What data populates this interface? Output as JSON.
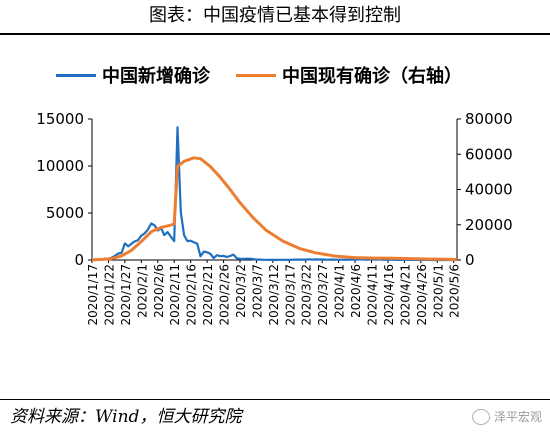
{
  "header": {
    "title": "图表：中国疫情已基本得到控制"
  },
  "footer": {
    "source": "资料来源：Wind，恒大研究院",
    "watermark": "泽平宏观"
  },
  "colors": {
    "new_cases": "#1f6fc1",
    "active_cases": "#ed7d31"
  },
  "chart_data": {
    "type": "line",
    "title": "图表：中国疫情已基本得到控制",
    "legend_position": "top",
    "grid": false,
    "series": [
      {
        "name": "中国新增确诊",
        "axis": "left",
        "color": "#1f6fc1",
        "points": [
          [
            "2020-01-17",
            17
          ],
          [
            "2020-01-18",
            4
          ],
          [
            "2020-01-19",
            77
          ],
          [
            "2020-01-20",
            77
          ],
          [
            "2020-01-21",
            149
          ],
          [
            "2020-01-22",
            131
          ],
          [
            "2020-01-23",
            259
          ],
          [
            "2020-01-24",
            444
          ],
          [
            "2020-01-25",
            688
          ],
          [
            "2020-01-26",
            769
          ],
          [
            "2020-01-27",
            1771
          ],
          [
            "2020-01-28",
            1459
          ],
          [
            "2020-01-29",
            1737
          ],
          [
            "2020-01-30",
            1982
          ],
          [
            "2020-01-31",
            2102
          ],
          [
            "2020-02-01",
            2590
          ],
          [
            "2020-02-02",
            2829
          ],
          [
            "2020-02-03",
            3235
          ],
          [
            "2020-02-04",
            3887
          ],
          [
            "2020-02-05",
            3694
          ],
          [
            "2020-02-06",
            3143
          ],
          [
            "2020-02-07",
            3385
          ],
          [
            "2020-02-08",
            2652
          ],
          [
            "2020-02-09",
            2973
          ],
          [
            "2020-02-10",
            2467
          ],
          [
            "2020-02-11",
            2015
          ],
          [
            "2020-02-12",
            14108
          ],
          [
            "2020-02-13",
            5090
          ],
          [
            "2020-02-14",
            2641
          ],
          [
            "2020-02-15",
            2008
          ],
          [
            "2020-02-16",
            2048
          ],
          [
            "2020-02-17",
            1886
          ],
          [
            "2020-02-18",
            1749
          ],
          [
            "2020-02-19",
            394
          ],
          [
            "2020-02-20",
            889
          ],
          [
            "2020-02-21",
            823
          ],
          [
            "2020-02-22",
            648
          ],
          [
            "2020-02-23",
            214
          ],
          [
            "2020-02-24",
            508
          ],
          [
            "2020-02-25",
            406
          ],
          [
            "2020-02-26",
            433
          ],
          [
            "2020-02-27",
            327
          ],
          [
            "2020-02-28",
            427
          ],
          [
            "2020-02-29",
            573
          ],
          [
            "2020-03-01",
            202
          ],
          [
            "2020-03-02",
            125
          ],
          [
            "2020-03-03",
            119
          ],
          [
            "2020-03-04",
            139
          ],
          [
            "2020-03-05",
            143
          ],
          [
            "2020-03-06",
            99
          ],
          [
            "2020-03-07",
            44
          ],
          [
            "2020-03-08",
            40
          ],
          [
            "2020-03-09",
            19
          ],
          [
            "2020-03-10",
            24
          ],
          [
            "2020-03-11",
            15
          ],
          [
            "2020-03-12",
            8
          ],
          [
            "2020-03-13",
            11
          ],
          [
            "2020-03-14",
            20
          ],
          [
            "2020-03-15",
            16
          ],
          [
            "2020-03-16",
            21
          ],
          [
            "2020-03-17",
            13
          ],
          [
            "2020-03-18",
            34
          ],
          [
            "2020-03-19",
            39
          ],
          [
            "2020-03-20",
            41
          ],
          [
            "2020-03-21",
            46
          ],
          [
            "2020-03-22",
            39
          ],
          [
            "2020-03-23",
            78
          ],
          [
            "2020-03-24",
            47
          ],
          [
            "2020-03-25",
            67
          ],
          [
            "2020-03-26",
            55
          ],
          [
            "2020-03-27",
            54
          ],
          [
            "2020-03-28",
            45
          ],
          [
            "2020-03-29",
            31
          ],
          [
            "2020-03-30",
            48
          ],
          [
            "2020-03-31",
            36
          ],
          [
            "2020-04-01",
            35
          ],
          [
            "2020-04-02",
            31
          ],
          [
            "2020-04-03",
            19
          ],
          [
            "2020-04-04",
            30
          ],
          [
            "2020-04-05",
            39
          ],
          [
            "2020-04-06",
            32
          ],
          [
            "2020-04-07",
            62
          ],
          [
            "2020-04-08",
            63
          ],
          [
            "2020-04-09",
            42
          ],
          [
            "2020-04-10",
            46
          ],
          [
            "2020-04-11",
            99
          ],
          [
            "2020-04-12",
            108
          ],
          [
            "2020-04-13",
            89
          ],
          [
            "2020-04-14",
            46
          ],
          [
            "2020-04-15",
            26
          ],
          [
            "2020-04-16",
            27
          ],
          [
            "2020-04-17",
            27
          ],
          [
            "2020-04-18",
            16
          ],
          [
            "2020-04-19",
            12
          ],
          [
            "2020-04-20",
            11
          ],
          [
            "2020-04-21",
            30
          ],
          [
            "2020-04-22",
            10
          ],
          [
            "2020-04-23",
            6
          ],
          [
            "2020-04-24",
            12
          ],
          [
            "2020-04-25",
            11
          ],
          [
            "2020-04-26",
            3
          ],
          [
            "2020-04-27",
            6
          ],
          [
            "2020-04-28",
            22
          ],
          [
            "2020-04-29",
            4
          ],
          [
            "2020-04-30",
            12
          ],
          [
            "2020-05-01",
            1
          ],
          [
            "2020-05-02",
            2
          ],
          [
            "2020-05-03",
            3
          ],
          [
            "2020-05-04",
            1
          ],
          [
            "2020-05-05",
            2
          ],
          [
            "2020-05-06",
            2
          ],
          [
            "2020-05-07",
            4
          ]
        ]
      },
      {
        "name": "中国现有确诊（右轴）",
        "axis": "right",
        "color": "#ed7d31",
        "points": [
          [
            "2020-01-17",
            100
          ],
          [
            "2020-01-20",
            300
          ],
          [
            "2020-01-23",
            800
          ],
          [
            "2020-01-26",
            2300
          ],
          [
            "2020-01-29",
            5500
          ],
          [
            "2020-02-01",
            10500
          ],
          [
            "2020-02-04",
            16000
          ],
          [
            "2020-02-07",
            18500
          ],
          [
            "2020-02-10",
            19800
          ],
          [
            "2020-02-11",
            20500
          ],
          [
            "2020-02-12",
            53000
          ],
          [
            "2020-02-14",
            56000
          ],
          [
            "2020-02-17",
            58000
          ],
          [
            "2020-02-19",
            57500
          ],
          [
            "2020-02-22",
            53000
          ],
          [
            "2020-02-25",
            47000
          ],
          [
            "2020-02-28",
            40000
          ],
          [
            "2020-03-02",
            32500
          ],
          [
            "2020-03-06",
            24000
          ],
          [
            "2020-03-10",
            16800
          ],
          [
            "2020-03-15",
            10800
          ],
          [
            "2020-03-20",
            6600
          ],
          [
            "2020-03-25",
            4100
          ],
          [
            "2020-03-31",
            2200
          ],
          [
            "2020-04-06",
            1350
          ],
          [
            "2020-04-12",
            1100
          ],
          [
            "2020-04-18",
            1000
          ],
          [
            "2020-04-24",
            700
          ],
          [
            "2020-04-30",
            500
          ],
          [
            "2020-05-07",
            300
          ]
        ]
      }
    ],
    "y_left": {
      "min": 0,
      "max": 15000,
      "ticks": [
        "0",
        "5000",
        "10000",
        "15000"
      ]
    },
    "y_right": {
      "min": 0,
      "max": 80000,
      "ticks": [
        "0",
        "20000",
        "40000",
        "60000",
        "80000"
      ]
    },
    "x_range": [
      "2020-01-17",
      "2020-05-07"
    ],
    "x_ticks": [
      "2020/1/17",
      "2020/1/22",
      "2020/1/27",
      "2020/2/1",
      "2020/2/6",
      "2020/2/11",
      "2020/2/16",
      "2020/2/21",
      "2020/2/26",
      "2020/3/2",
      "2020/3/7",
      "2020/3/12",
      "2020/3/17",
      "2020/3/22",
      "2020/3/27",
      "2020/4/1",
      "2020/4/6",
      "2020/4/11",
      "2020/4/16",
      "2020/4/21",
      "2020/4/26",
      "2020/5/1",
      "2020/5/6"
    ]
  }
}
